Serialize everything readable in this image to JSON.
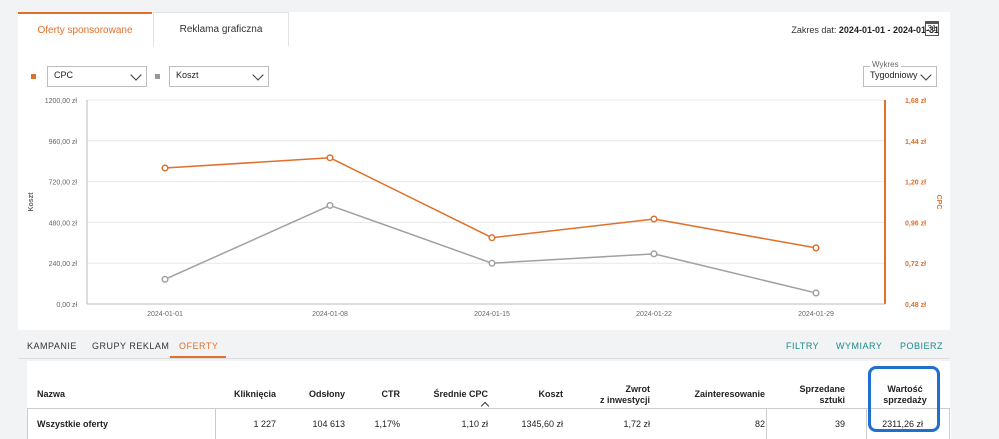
{
  "top_tabs": [
    {
      "label": "Oferty sponsorowane",
      "active": true
    },
    {
      "label": "Reklama graficzna",
      "active": false
    }
  ],
  "date_range": {
    "prefix": "Zakres dat:",
    "value": "2024-01-01 - 2024-01-31",
    "calendar_day": "31"
  },
  "metric_left": {
    "value": "CPC",
    "color": "#e0702a"
  },
  "metric_right": {
    "value": "Koszt",
    "color": "#999999"
  },
  "chart_type_select": {
    "label": "Wykres",
    "value": "Tygodniowy"
  },
  "chart_data": {
    "type": "line",
    "x": [
      "2024-01-01",
      "2024-01-08",
      "2024-01-15",
      "2024-01-22",
      "2024-01-29"
    ],
    "ylabel": "Koszt",
    "y2label": "CPC",
    "ylim": [
      0,
      1200
    ],
    "y2lim": [
      0.48,
      1.68
    ],
    "yticks": [
      "0,00 zł",
      "240,00 zł",
      "480,00 zł",
      "720,00 zł",
      "960,00 zł",
      "1200,00 zł"
    ],
    "y2ticks": [
      "0,48 zł",
      "0,72 zł",
      "0,96 zł",
      "1,20 zł",
      "1,44 zł",
      "1,68 zł"
    ],
    "grid": true,
    "series": [
      {
        "name": "CPC",
        "axis": "right",
        "color": "#e0702a",
        "values": [
          1.28,
          1.34,
          0.87,
          0.98,
          0.81
        ]
      },
      {
        "name": "Koszt",
        "axis": "left",
        "color": "#a0a0a0",
        "values": [
          145,
          580,
          240,
          295,
          65
        ]
      }
    ]
  },
  "bottom_tabs": [
    {
      "label": "KAMPANIE",
      "active": false
    },
    {
      "label": "GRUPY REKLAM",
      "active": false
    },
    {
      "label": "OFERTY",
      "active": true
    }
  ],
  "actions": [
    "FILTRY",
    "WYMIARY",
    "POBIERZ"
  ],
  "table": {
    "headers": [
      "Nazwa",
      "Kliknięcia",
      "Odsłony",
      "CTR",
      "Średnie CPC",
      "Koszt",
      "Zwrot\nz inwestycji",
      "Zainteresowanie",
      "Sprzedane\nsztuki",
      "Wartość\nsprzedaży"
    ],
    "sort_arrow": "^",
    "row": [
      "Wszystkie oferty",
      "1 227",
      "104 613",
      "1,17%",
      "1,10 zł",
      "1345,60 zł",
      "1,72 zł",
      "82",
      "39",
      "2311,26 zł"
    ]
  }
}
